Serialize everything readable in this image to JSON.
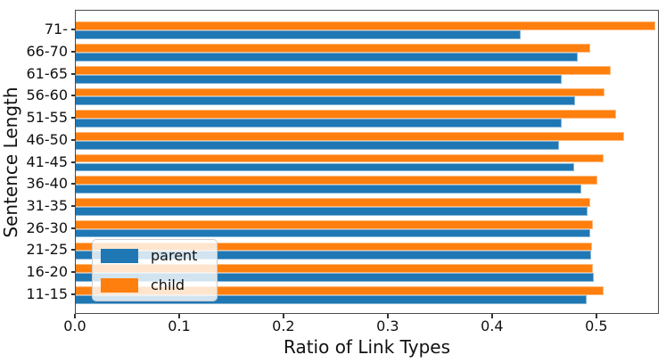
{
  "chart_data": {
    "type": "bar",
    "orientation": "horizontal",
    "title": "",
    "xlabel": "Ratio of Link Types",
    "ylabel": "Sentence Length",
    "categories": [
      "71-",
      "66-70",
      "61-65",
      "56-60",
      "51-55",
      "46-50",
      "41-45",
      "36-40",
      "31-35",
      "26-30",
      "21-25",
      "16-20",
      "11-15"
    ],
    "series": [
      {
        "name": "parent",
        "color": "#1f77b4",
        "values": [
          0.427,
          0.481,
          0.466,
          0.479,
          0.466,
          0.463,
          0.478,
          0.485,
          0.491,
          0.493,
          0.494,
          0.497,
          0.49
        ]
      },
      {
        "name": "child",
        "color": "#ff7f0e",
        "values": [
          0.556,
          0.493,
          0.513,
          0.507,
          0.518,
          0.526,
          0.506,
          0.5,
          0.493,
          0.496,
          0.495,
          0.496,
          0.506
        ]
      }
    ],
    "xlim": [
      0,
      0.56
    ],
    "xticks": [
      "0.0",
      "0.1",
      "0.2",
      "0.3",
      "0.4",
      "0.5"
    ],
    "grid": false,
    "legend_position": "lower left"
  }
}
